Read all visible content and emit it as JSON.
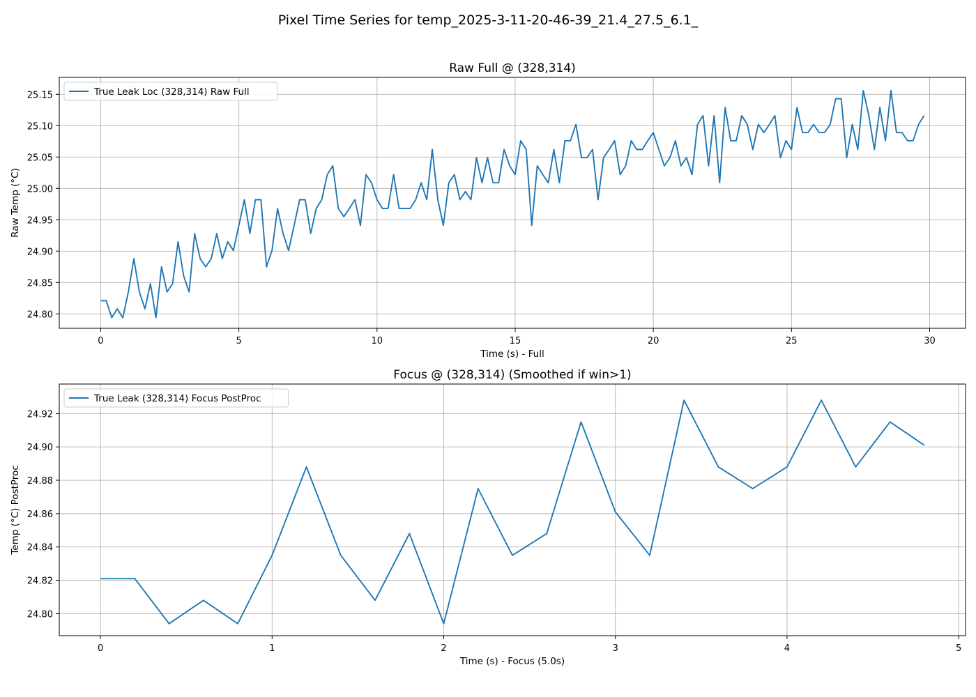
{
  "figure": {
    "suptitle": "Pixel Time Series for temp_2025-3-11-20-46-39_21.4_27.5_6.1_"
  },
  "colors": {
    "series": "#1f77b4",
    "grid": "#b0b0b0",
    "axes": "#000000",
    "background": "#ffffff"
  },
  "chart_data": [
    {
      "type": "line",
      "title": "Raw Full @ (328,314)",
      "xlabel": "Time (s) - Full",
      "ylabel": "Raw Temp (°C)",
      "xlim": [
        -1.5,
        31.3
      ],
      "ylim": [
        24.777,
        25.177
      ],
      "xticks": [
        0,
        5,
        10,
        15,
        20,
        25,
        30
      ],
      "xtick_labels": [
        "0",
        "5",
        "10",
        "15",
        "20",
        "25",
        "30"
      ],
      "yticks": [
        24.8,
        24.85,
        24.9,
        24.95,
        25.0,
        25.05,
        25.1,
        25.15
      ],
      "ytick_labels": [
        "24.80",
        "24.85",
        "24.90",
        "24.95",
        "25.00",
        "25.05",
        "25.10",
        "25.15"
      ],
      "grid": true,
      "legend_position": "top-left",
      "series": [
        {
          "name": "True Leak Loc (328,314) Raw Full",
          "x_start": 0,
          "x_step": 0.2,
          "values": [
            24.821,
            24.821,
            24.794,
            24.808,
            24.794,
            24.835,
            24.888,
            24.835,
            24.808,
            24.848,
            24.794,
            24.875,
            24.835,
            24.848,
            24.915,
            24.861,
            24.835,
            24.928,
            24.888,
            24.875,
            24.888,
            24.928,
            24.888,
            24.915,
            24.901,
            24.941,
            24.982,
            24.928,
            24.982,
            24.982,
            24.875,
            24.901,
            24.968,
            24.928,
            24.901,
            24.941,
            24.982,
            24.982,
            24.928,
            24.968,
            24.982,
            25.022,
            25.036,
            24.968,
            24.955,
            24.968,
            24.982,
            24.941,
            25.022,
            25.009,
            24.982,
            24.968,
            24.968,
            25.022,
            24.968,
            24.968,
            24.968,
            24.982,
            25.009,
            24.982,
            25.062,
            24.982,
            24.941,
            25.009,
            25.022,
            24.982,
            24.995,
            24.982,
            25.049,
            25.009,
            25.049,
            25.009,
            25.009,
            25.062,
            25.036,
            25.022,
            25.076,
            25.062,
            24.941,
            25.036,
            25.022,
            25.009,
            25.062,
            25.009,
            25.076,
            25.076,
            25.102,
            25.049,
            25.049,
            25.062,
            24.982,
            25.049,
            25.062,
            25.076,
            25.022,
            25.036,
            25.076,
            25.062,
            25.062,
            25.076,
            25.089,
            25.062,
            25.036,
            25.049,
            25.076,
            25.036,
            25.049,
            25.022,
            25.102,
            25.116,
            25.036,
            25.116,
            25.009,
            25.129,
            25.076,
            25.076,
            25.116,
            25.102,
            25.062,
            25.102,
            25.089,
            25.102,
            25.116,
            25.049,
            25.076,
            25.062,
            25.129,
            25.089,
            25.089,
            25.102,
            25.089,
            25.089,
            25.102,
            25.143,
            25.143,
            25.049,
            25.102,
            25.062,
            25.156,
            25.116,
            25.062,
            25.129,
            25.076,
            25.156,
            25.089,
            25.089,
            25.076,
            25.076,
            25.102,
            25.116
          ]
        }
      ]
    },
    {
      "type": "line",
      "title": "Focus @ (328,314) (Smoothed if win>1)",
      "xlabel": "Time (s) - Focus (5.0s)",
      "ylabel": "Temp (°C) PostProc",
      "xlim": [
        -0.24,
        5.04
      ],
      "ylim": [
        24.7868,
        24.9377
      ],
      "xticks": [
        0,
        1,
        2,
        3,
        4,
        5
      ],
      "xtick_labels": [
        "0",
        "1",
        "2",
        "3",
        "4",
        "5"
      ],
      "yticks": [
        24.8,
        24.82,
        24.84,
        24.86,
        24.88,
        24.9,
        24.92
      ],
      "ytick_labels": [
        "24.80",
        "24.82",
        "24.84",
        "24.86",
        "24.88",
        "24.90",
        "24.92"
      ],
      "grid": true,
      "legend_position": "top-left",
      "series": [
        {
          "name": "True Leak (328,314) Focus PostProc",
          "x_start": 0,
          "x_step": 0.2,
          "values": [
            24.821,
            24.821,
            24.794,
            24.808,
            24.794,
            24.835,
            24.888,
            24.835,
            24.808,
            24.848,
            24.794,
            24.875,
            24.835,
            24.848,
            24.915,
            24.861,
            24.835,
            24.928,
            24.888,
            24.875,
            24.888,
            24.928,
            24.888,
            24.915,
            24.901
          ]
        }
      ]
    }
  ]
}
